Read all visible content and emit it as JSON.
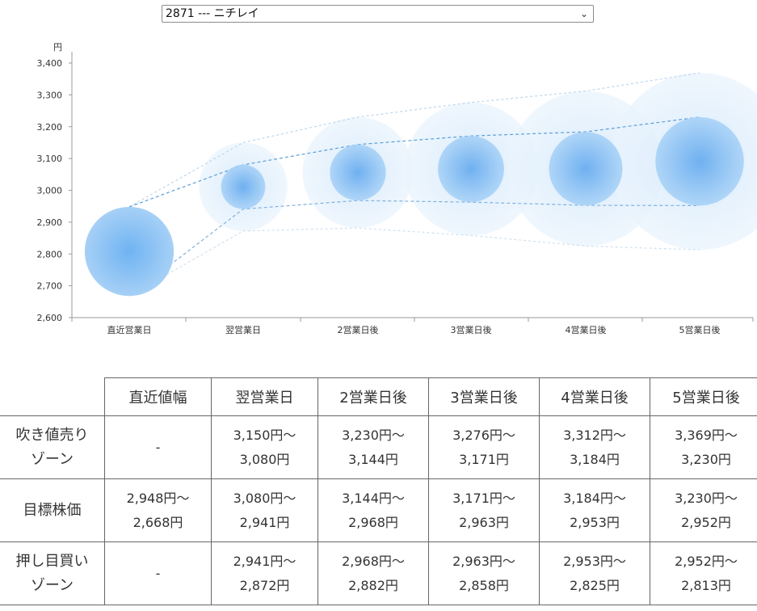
{
  "selector": {
    "value": "2871 --- ニチレイ"
  },
  "chart_data": {
    "type": "scatter",
    "y_unit": "円",
    "ylim": [
      2600,
      3400
    ],
    "y_ticks": [
      "2,600",
      "2,700",
      "2,800",
      "2,900",
      "3,000",
      "3,100",
      "3,200",
      "3,300",
      "3,400"
    ],
    "categories": [
      "直近営業日",
      "翌営業日",
      "2営業日後",
      "3営業日後",
      "4営業日後",
      "5営業日後"
    ],
    "center": [
      2808,
      3011,
      3056,
      3067,
      3068,
      3091
    ],
    "upper_line": [
      2948,
      3150,
      3230,
      3276,
      3312,
      3369
    ],
    "target_line": [
      2948,
      3080,
      3144,
      3171,
      3184,
      3230
    ],
    "lower_line": [
      2668,
      2941,
      2968,
      2963,
      2953,
      2952
    ],
    "bottom_line": [
      2668,
      2872,
      2882,
      2858,
      2825,
      2813
    ],
    "colors": {
      "bubble": "#7fbaf0",
      "line": "#6aa8dc",
      "axis": "#999999"
    }
  },
  "table": {
    "headers": [
      "",
      "直近値幅",
      "翌営業日",
      "2営業日後",
      "3営業日後",
      "4営業日後",
      "5営業日後"
    ],
    "rows": [
      {
        "label": [
          "吹き値売り",
          "ゾーン"
        ],
        "cells": [
          [
            "-"
          ],
          [
            "3,150円〜",
            "3,080円"
          ],
          [
            "3,230円〜",
            "3,144円"
          ],
          [
            "3,276円〜",
            "3,171円"
          ],
          [
            "3,312円〜",
            "3,184円"
          ],
          [
            "3,369円〜",
            "3,230円"
          ]
        ]
      },
      {
        "label": [
          "目標株価"
        ],
        "cells": [
          [
            "2,948円〜",
            "2,668円"
          ],
          [
            "3,080円〜",
            "2,941円"
          ],
          [
            "3,144円〜",
            "2,968円"
          ],
          [
            "3,171円〜",
            "2,963円"
          ],
          [
            "3,184円〜",
            "2,953円"
          ],
          [
            "3,230円〜",
            "2,952円"
          ]
        ]
      },
      {
        "label": [
          "押し目買い",
          "ゾーン"
        ],
        "cells": [
          [
            "-"
          ],
          [
            "2,941円〜",
            "2,872円"
          ],
          [
            "2,968円〜",
            "2,882円"
          ],
          [
            "2,963円〜",
            "2,858円"
          ],
          [
            "2,953円〜",
            "2,825円"
          ],
          [
            "2,952円〜",
            "2,813円"
          ]
        ]
      }
    ]
  }
}
